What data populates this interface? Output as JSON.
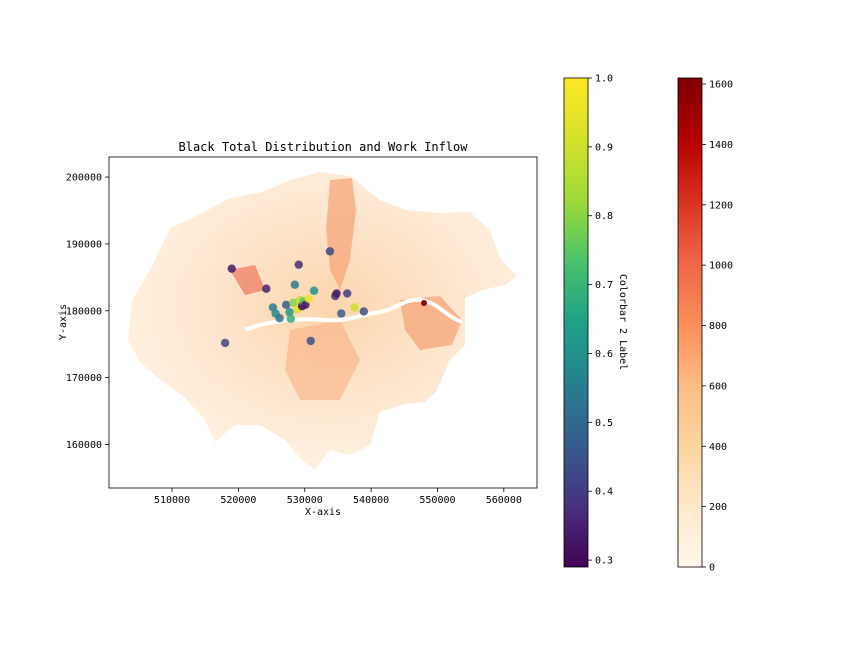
{
  "chart_data": {
    "type": "scatter",
    "title": "Black Total Distribution and Work Inflow",
    "xlabel": "X-axis",
    "ylabel": "Y-axis",
    "xlim": [
      500500,
      565000
    ],
    "ylim": [
      153500,
      203000
    ],
    "x_ticks": [
      510000,
      520000,
      530000,
      540000,
      550000,
      560000
    ],
    "y_ticks": [
      160000,
      170000,
      180000,
      190000,
      200000
    ],
    "grid": false,
    "map_layer": {
      "description": "choropleth of Black Total by area",
      "colormap": "OrRd",
      "colorbar": {
        "range": [
          0,
          1620
        ],
        "ticks": [
          0,
          200,
          400,
          600,
          800,
          1000,
          1200,
          1400,
          1600
        ]
      }
    },
    "points_colorbar": {
      "label": "Colorbar 2 Label",
      "colormap": "viridis",
      "range": [
        0.29,
        1.0
      ],
      "ticks": [
        0.3,
        0.4,
        0.5,
        0.6,
        0.7,
        0.8,
        0.9,
        1.0
      ]
    },
    "points": [
      {
        "x": 519000,
        "y": 186300,
        "v": 0.33
      },
      {
        "x": 518000,
        "y": 175200,
        "v": 0.42
      },
      {
        "x": 524200,
        "y": 183300,
        "v": 0.35
      },
      {
        "x": 525200,
        "y": 180500,
        "v": 0.55
      },
      {
        "x": 525600,
        "y": 179600,
        "v": 0.58
      },
      {
        "x": 526200,
        "y": 178900,
        "v": 0.52
      },
      {
        "x": 527200,
        "y": 180900,
        "v": 0.47
      },
      {
        "x": 527700,
        "y": 179800,
        "v": 0.62
      },
      {
        "x": 527900,
        "y": 178800,
        "v": 0.68
      },
      {
        "x": 528300,
        "y": 181200,
        "v": 0.8
      },
      {
        "x": 528500,
        "y": 183900,
        "v": 0.55
      },
      {
        "x": 528900,
        "y": 180200,
        "v": 0.92
      },
      {
        "x": 529100,
        "y": 186900,
        "v": 0.37
      },
      {
        "x": 529300,
        "y": 181600,
        "v": 0.88
      },
      {
        "x": 529600,
        "y": 180700,
        "v": 0.3
      },
      {
        "x": 529800,
        "y": 181400,
        "v": 0.75
      },
      {
        "x": 530100,
        "y": 180900,
        "v": 0.33
      },
      {
        "x": 530600,
        "y": 181800,
        "v": 0.95
      },
      {
        "x": 530900,
        "y": 175500,
        "v": 0.45
      },
      {
        "x": 531400,
        "y": 183000,
        "v": 0.6
      },
      {
        "x": 533800,
        "y": 188900,
        "v": 0.42
      },
      {
        "x": 534600,
        "y": 182200,
        "v": 0.4
      },
      {
        "x": 534800,
        "y": 182600,
        "v": 0.33
      },
      {
        "x": 535500,
        "y": 179600,
        "v": 0.47
      },
      {
        "x": 536400,
        "y": 182600,
        "v": 0.4
      },
      {
        "x": 537500,
        "y": 180500,
        "v": 0.9
      },
      {
        "x": 538900,
        "y": 179900,
        "v": 0.45
      }
    ]
  }
}
